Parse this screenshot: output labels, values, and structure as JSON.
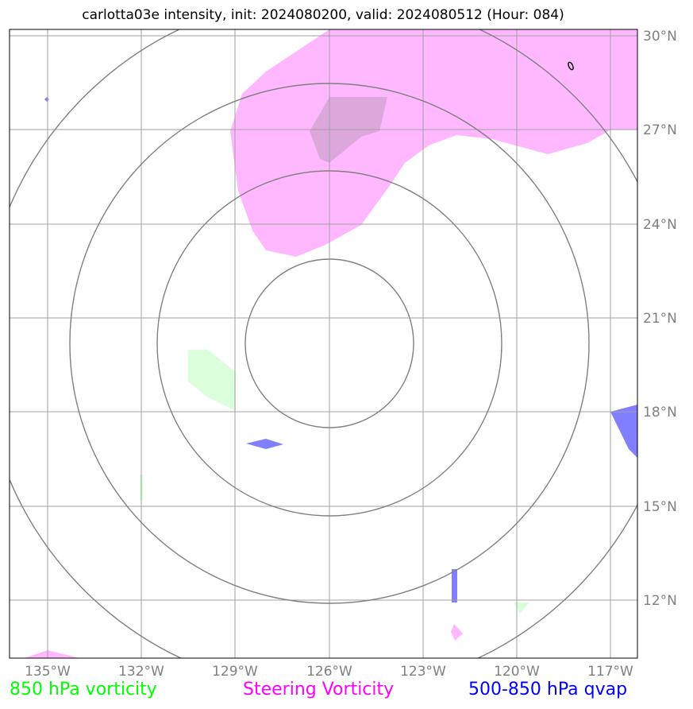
{
  "title": "carlotta03e intensity, init: 2024080200, valid: 2024080512 (Hour: 084)",
  "map": {
    "lon_ticks": [
      "135°W",
      "132°W",
      "129°W",
      "126°W",
      "123°W",
      "120°W",
      "117°W"
    ],
    "lat_ticks": [
      "30°N",
      "27°N",
      "24°N",
      "21°N",
      "18°N",
      "15°N",
      "12°N"
    ],
    "range_rings": 4,
    "colors": {
      "vorticity_850": "#00ff00",
      "steering_vorticity": "#ff00ff",
      "qvap": "#0000ff",
      "grid": "#a0a0a0",
      "rings": "#808080"
    }
  },
  "legend": {
    "vorticity_label": "850 hPa vorticity",
    "steering_label": "Steering Vorticity",
    "qvap_label": "500-850 hPa qvap"
  }
}
